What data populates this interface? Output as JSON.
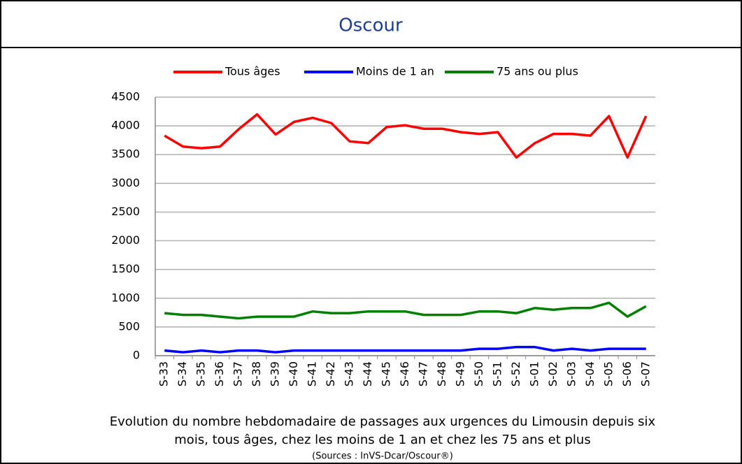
{
  "chart_data": {
    "type": "line",
    "title": "Oscour",
    "categories": [
      "S-33",
      "S-34",
      "S-35",
      "S-36",
      "S-37",
      "S-38",
      "S-39",
      "S-40",
      "S-41",
      "S-42",
      "S-43",
      "S-44",
      "S-45",
      "S-46",
      "S-47",
      "S-48",
      "S-49",
      "S-50",
      "S-51",
      "S-52",
      "S-01",
      "S-02",
      "S-03",
      "S-04",
      "S-05",
      "S-06",
      "S-07"
    ],
    "series": [
      {
        "name": "Tous âges",
        "color": "#ff0000",
        "values": [
          3830,
          3640,
          3610,
          3640,
          3940,
          4200,
          3850,
          4070,
          4140,
          4050,
          3730,
          3700,
          3980,
          4010,
          3950,
          3950,
          3890,
          3860,
          3890,
          3450,
          3700,
          3860,
          3860,
          3830,
          4170,
          3450,
          4170
        ]
      },
      {
        "name": "Moins de 1 an",
        "color": "#0000ff",
        "values": [
          90,
          60,
          90,
          60,
          90,
          90,
          60,
          90,
          90,
          90,
          90,
          90,
          90,
          90,
          90,
          90,
          90,
          120,
          120,
          150,
          150,
          90,
          120,
          90,
          120,
          120,
          120
        ]
      },
      {
        "name": "75 ans ou plus",
        "color": "#008000",
        "values": [
          740,
          710,
          710,
          680,
          650,
          680,
          680,
          680,
          770,
          740,
          740,
          770,
          770,
          770,
          710,
          710,
          710,
          770,
          770,
          740,
          830,
          800,
          830,
          830,
          920,
          680,
          860
        ]
      }
    ],
    "ylim": [
      0,
      4500
    ],
    "yticks": [
      0,
      500,
      1000,
      1500,
      2000,
      2500,
      3000,
      3500,
      4000,
      4500
    ],
    "grid": true,
    "legend": "top",
    "caption": [
      "Evolution du nombre hebdomadaire de passages aux urgences du Limousin depuis six",
      "mois, tous âges, chez les moins de 1 an et chez les 75 ans et plus"
    ],
    "source": "(Sources : InVS-Dcar/Oscour®)"
  }
}
